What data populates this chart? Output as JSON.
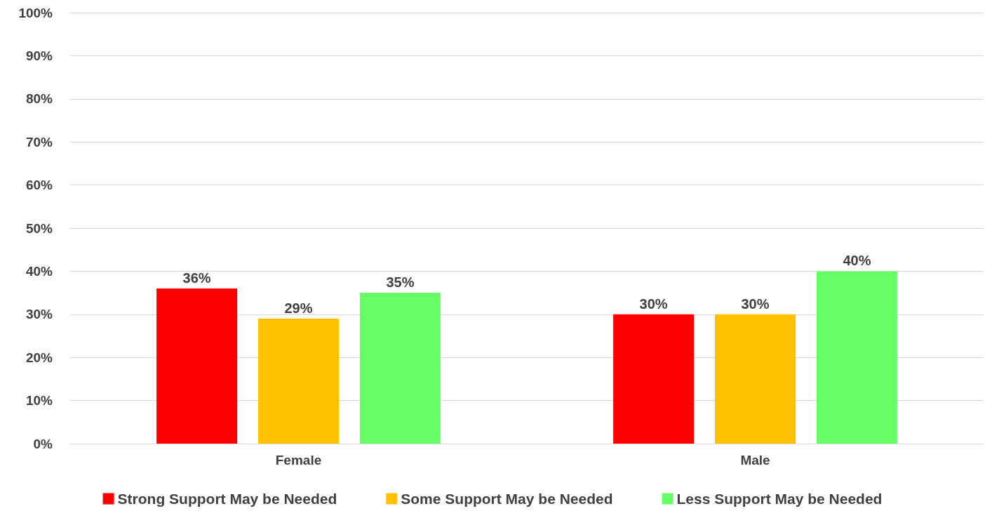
{
  "chart_data": {
    "type": "bar",
    "categories": [
      "Female",
      "Male"
    ],
    "series": [
      {
        "name": "Strong Support May be Needed",
        "color": "#ff0000",
        "values": [
          36,
          30
        ],
        "value_labels": [
          "36%",
          "30%"
        ]
      },
      {
        "name": "Some Support May be Needed",
        "color": "#ffc000",
        "values": [
          29,
          30
        ],
        "value_labels": [
          "29%",
          "30%"
        ]
      },
      {
        "name": "Less Support May be Needed",
        "color": "#66ff66",
        "values": [
          35,
          40
        ],
        "value_labels": [
          "35%",
          "40%"
        ]
      }
    ],
    "ylim": [
      0,
      100
    ],
    "yticks": [
      {
        "value": 0,
        "label": "0%"
      },
      {
        "value": 10,
        "label": "10%"
      },
      {
        "value": 20,
        "label": "20%"
      },
      {
        "value": 30,
        "label": "30%"
      },
      {
        "value": 40,
        "label": "40%"
      },
      {
        "value": 50,
        "label": "50%"
      },
      {
        "value": 60,
        "label": "60%"
      },
      {
        "value": 70,
        "label": "70%"
      },
      {
        "value": 80,
        "label": "80%"
      },
      {
        "value": 90,
        "label": "90%"
      },
      {
        "value": 100,
        "label": "100%"
      }
    ],
    "grid": "y",
    "legend": "bottom"
  }
}
